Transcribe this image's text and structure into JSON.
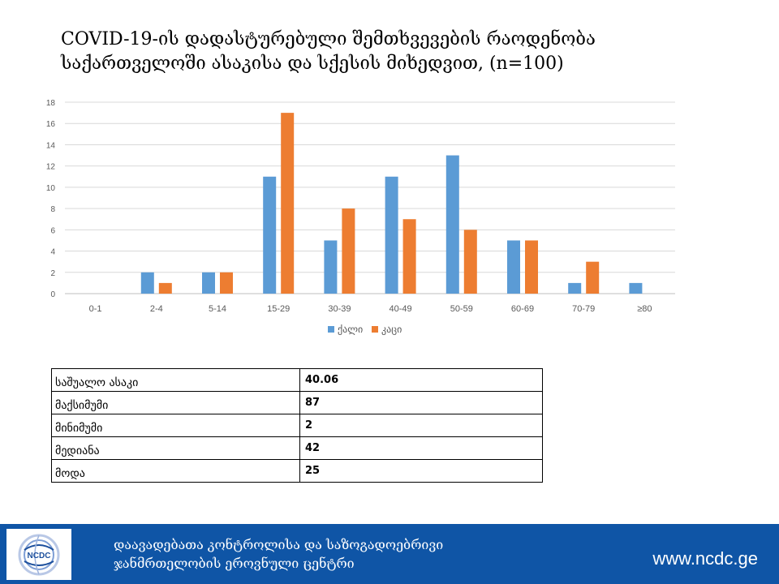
{
  "title": {
    "line1": "COVID-19-ის დადასტურებული შემთხვევების რაოდენობა",
    "line2": "საქართველოში ასაკისა და სქესის მიხედვით, (n=100)"
  },
  "chart_data": {
    "type": "bar",
    "categories": [
      "0-1",
      "2-4",
      "5-14",
      "15-29",
      "30-39",
      "40-49",
      "50-59",
      "60-69",
      "70-79",
      "≥80"
    ],
    "series": [
      {
        "name": "ქალი",
        "color": "#5b9bd5",
        "values": [
          0,
          2,
          2,
          11,
          5,
          11,
          13,
          5,
          1,
          1
        ]
      },
      {
        "name": "კაცი",
        "color": "#ed7d31",
        "values": [
          0,
          1,
          2,
          17,
          8,
          7,
          6,
          5,
          3,
          0
        ]
      }
    ],
    "ylim": [
      0,
      18
    ],
    "yticks": [
      0,
      2,
      4,
      6,
      8,
      10,
      12,
      14,
      16,
      18
    ],
    "grid": true,
    "legend": "bottom-center"
  },
  "stats": [
    {
      "label": "საშუალო ასაკი",
      "value": "40.06"
    },
    {
      "label": "მაქსიმუმი",
      "value": "87"
    },
    {
      "label": "მინიმუმი",
      "value": "2"
    },
    {
      "label": "მედიანა",
      "value": "42"
    },
    {
      "label": "მოდა",
      "value": "25"
    }
  ],
  "footer": {
    "logo_text": "NCDC",
    "org_line1": "დაავადებათა კონტროლისა და საზოგადოებრივი",
    "org_line2": "ჯანმრთელობის ეროვნული ცენტრი",
    "url": "www.ncdc.ge",
    "background": "#0f55a6"
  }
}
